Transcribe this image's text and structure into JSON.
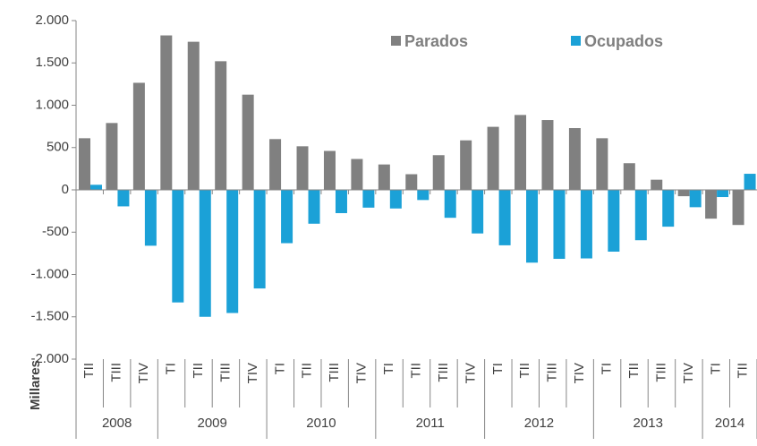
{
  "chart_data": {
    "type": "bar",
    "y_label": "Millares",
    "groups": [
      {
        "label": "2008",
        "categories": [
          "TII",
          "TIII",
          "TIV"
        ]
      },
      {
        "label": "2009",
        "categories": [
          "TI",
          "TII",
          "TIII",
          "TIV"
        ]
      },
      {
        "label": "2010",
        "categories": [
          "TI",
          "TII",
          "TIII",
          "TIV"
        ]
      },
      {
        "label": "2011",
        "categories": [
          "TI",
          "TII",
          "TIII",
          "TIV"
        ]
      },
      {
        "label": "2012",
        "categories": [
          "TI",
          "TII",
          "TIII",
          "TIV"
        ]
      },
      {
        "label": "2013",
        "categories": [
          "TI",
          "TII",
          "TIII",
          "TIV"
        ]
      },
      {
        "label": "2014",
        "categories": [
          "TI",
          "TII"
        ]
      }
    ],
    "series": [
      {
        "name": "Parados",
        "color": "#808080",
        "values": [
          610,
          790,
          1265,
          1825,
          1750,
          1520,
          1125,
          600,
          515,
          460,
          365,
          300,
          185,
          410,
          585,
          745,
          885,
          825,
          730,
          610,
          315,
          120,
          -75,
          -340,
          -415
        ]
      },
      {
        "name": "Ocupados",
        "color": "#1ba1d7",
        "values": [
          60,
          -195,
          -660,
          -1330,
          -1500,
          -1455,
          -1165,
          -630,
          -400,
          -275,
          -210,
          -220,
          -120,
          -330,
          -515,
          -655,
          -860,
          -815,
          -810,
          -730,
          -595,
          -435,
          -205,
          -85,
          190
        ]
      }
    ],
    "ylim": [
      -2000,
      2000
    ],
    "yticks": [
      {
        "value": -2000,
        "label": "-2.000"
      },
      {
        "value": -1500,
        "label": "-1.500"
      },
      {
        "value": -1000,
        "label": "-1.000"
      },
      -500,
      0,
      500,
      {
        "value": 1000,
        "label": "1.000"
      },
      {
        "value": 1500,
        "label": "1.500"
      },
      {
        "value": 2000,
        "label": "2.000"
      }
    ],
    "grid": false,
    "legend": "top-right"
  }
}
